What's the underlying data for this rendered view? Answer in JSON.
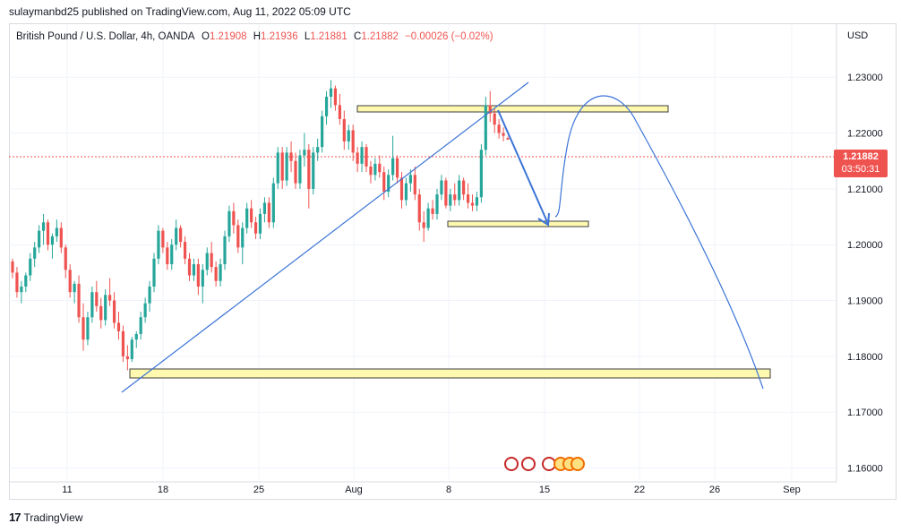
{
  "header": {
    "published": "sulaymanbd25 published on TradingView.com, Aug 11, 2022 05:09 UTC"
  },
  "legend": {
    "symbol": "British Pound / U.S. Dollar, 4h, OANDA",
    "o_label": "O",
    "o": "1.21908",
    "h_label": "H",
    "h": "1.21936",
    "l_label": "L",
    "l": "1.21881",
    "c_label": "C",
    "c": "1.21882",
    "change": "−0.00026 (−0.02%)"
  },
  "currency": "USD",
  "last_price": {
    "price": "1.21882",
    "countdown": "03:50:31",
    "color": "#ef5350"
  },
  "footer": {
    "brand": "TradingView",
    "logo_icon": "tradingview-logo-icon"
  },
  "colors": {
    "up": "#26a69a",
    "down": "#ef5350",
    "drawing": "#3b74d6",
    "zone_fill": "#fff9b0",
    "zone_border": "#3e3e3e"
  },
  "chart_data": {
    "type": "candlestick",
    "x_tick_labels": [
      "11",
      "18",
      "25",
      "Aug",
      "8",
      "15",
      "22",
      "26",
      "Sep"
    ],
    "y_tick_labels": [
      "1.23000",
      "1.22000",
      "1.21000",
      "1.20000",
      "1.19000",
      "1.18000",
      "1.17000",
      "1.16000"
    ],
    "ylim": [
      1.158,
      1.2395
    ],
    "grid": true,
    "price_line": 1.21882,
    "candles": [
      [
        1.197,
        1.1975,
        1.194,
        1.195
      ],
      [
        1.195,
        1.196,
        1.1905,
        1.1915
      ],
      [
        1.1915,
        1.1935,
        1.1895,
        1.1925
      ],
      [
        1.1925,
        1.195,
        1.1915,
        1.1945
      ],
      [
        1.1945,
        1.1985,
        1.1935,
        1.1975
      ],
      [
        1.1975,
        1.2005,
        1.196,
        1.1995
      ],
      [
        1.1995,
        1.2035,
        1.1985,
        1.2025
      ],
      [
        1.2025,
        1.2055,
        1.2,
        1.204
      ],
      [
        1.204,
        1.2045,
        1.199,
        1.2
      ],
      [
        1.2,
        1.202,
        1.1975,
        1.2015
      ],
      [
        1.2015,
        1.2045,
        1.2005,
        1.203
      ],
      [
        1.203,
        1.204,
        1.1985,
        1.1995
      ],
      [
        1.1995,
        1.2,
        1.194,
        1.1955
      ],
      [
        1.1955,
        1.1965,
        1.1905,
        1.1915
      ],
      [
        1.1915,
        1.1935,
        1.1895,
        1.193
      ],
      [
        1.193,
        1.1945,
        1.186,
        1.187
      ],
      [
        1.187,
        1.1895,
        1.181,
        1.183
      ],
      [
        1.183,
        1.188,
        1.182,
        1.187
      ],
      [
        1.187,
        1.1925,
        1.186,
        1.1915
      ],
      [
        1.1915,
        1.1935,
        1.188,
        1.189
      ],
      [
        1.189,
        1.1905,
        1.185,
        1.1865
      ],
      [
        1.1865,
        1.192,
        1.1855,
        1.191
      ],
      [
        1.191,
        1.194,
        1.189,
        1.19
      ],
      [
        1.19,
        1.1915,
        1.185,
        1.186
      ],
      [
        1.186,
        1.188,
        1.183,
        1.1845
      ],
      [
        1.1845,
        1.1855,
        1.179,
        1.18
      ],
      [
        1.18,
        1.182,
        1.1775,
        1.1795
      ],
      [
        1.1795,
        1.1835,
        1.179,
        1.183
      ],
      [
        1.183,
        1.1845,
        1.1815,
        1.184
      ],
      [
        1.184,
        1.188,
        1.183,
        1.187
      ],
      [
        1.187,
        1.1905,
        1.186,
        1.1895
      ],
      [
        1.1895,
        1.1935,
        1.188,
        1.1925
      ],
      [
        1.1925,
        1.1985,
        1.1915,
        1.1975
      ],
      [
        1.1975,
        1.2035,
        1.1965,
        1.2025
      ],
      [
        1.2025,
        1.203,
        1.1985,
        1.1995
      ],
      [
        1.1995,
        1.2005,
        1.1955,
        1.1965
      ],
      [
        1.1965,
        1.201,
        1.1955,
        1.2
      ],
      [
        1.2,
        1.2045,
        1.199,
        1.203
      ],
      [
        1.203,
        1.2035,
        1.1995,
        1.2005
      ],
      [
        1.2005,
        1.2015,
        1.1965,
        1.1975
      ],
      [
        1.1975,
        1.1985,
        1.1935,
        1.1945
      ],
      [
        1.1945,
        1.1975,
        1.1935,
        1.1965
      ],
      [
        1.1965,
        1.1975,
        1.191,
        1.1925
      ],
      [
        1.1925,
        1.1965,
        1.1895,
        1.1955
      ],
      [
        1.1955,
        1.1995,
        1.1945,
        1.1985
      ],
      [
        1.1985,
        1.2005,
        1.195,
        1.196
      ],
      [
        1.196,
        1.197,
        1.1925,
        1.1935
      ],
      [
        1.1935,
        1.1975,
        1.1925,
        1.1965
      ],
      [
        1.1965,
        1.2025,
        1.1955,
        1.2015
      ],
      [
        1.2015,
        1.207,
        1.2005,
        1.206
      ],
      [
        1.206,
        1.2075,
        1.202,
        1.2035
      ],
      [
        1.2035,
        1.2045,
        1.1985,
        1.1995
      ],
      [
        1.1995,
        1.204,
        1.1965,
        1.203
      ],
      [
        1.203,
        1.2075,
        1.202,
        1.2065
      ],
      [
        1.2065,
        1.208,
        1.203,
        1.204
      ],
      [
        1.204,
        1.205,
        1.201,
        1.202
      ],
      [
        1.202,
        1.2065,
        1.201,
        1.2055
      ],
      [
        1.2055,
        1.2085,
        1.204,
        1.2075
      ],
      [
        1.2075,
        1.2085,
        1.203,
        1.204
      ],
      [
        1.204,
        1.212,
        1.203,
        1.211
      ],
      [
        1.211,
        1.2175,
        1.21,
        1.2165
      ],
      [
        1.2165,
        1.2175,
        1.21,
        1.2115
      ],
      [
        1.2115,
        1.2175,
        1.2105,
        1.2165
      ],
      [
        1.2165,
        1.2185,
        1.213,
        1.215
      ],
      [
        1.215,
        1.2165,
        1.21,
        1.211
      ],
      [
        1.211,
        1.217,
        1.21,
        1.216
      ],
      [
        1.216,
        1.22,
        1.214,
        1.217
      ],
      [
        1.217,
        1.218,
        1.2065,
        1.21
      ],
      [
        1.21,
        1.2175,
        1.209,
        1.2165
      ],
      [
        1.2165,
        1.219,
        1.215,
        1.2175
      ],
      [
        1.2175,
        1.224,
        1.2165,
        1.223
      ],
      [
        1.223,
        1.2275,
        1.2215,
        1.2265
      ],
      [
        1.2265,
        1.2295,
        1.2245,
        1.228
      ],
      [
        1.228,
        1.2285,
        1.224,
        1.225
      ],
      [
        1.225,
        1.227,
        1.2215,
        1.2225
      ],
      [
        1.2225,
        1.224,
        1.217,
        1.2185
      ],
      [
        1.2185,
        1.2215,
        1.217,
        1.2205
      ],
      [
        1.2205,
        1.2215,
        1.215,
        1.2165
      ],
      [
        1.2165,
        1.2175,
        1.213,
        1.2145
      ],
      [
        1.2145,
        1.2185,
        1.213,
        1.2175
      ],
      [
        1.2175,
        1.218,
        1.213,
        1.214
      ],
      [
        1.214,
        1.215,
        1.211,
        1.2125
      ],
      [
        1.2125,
        1.2155,
        1.2115,
        1.2145
      ],
      [
        1.2145,
        1.216,
        1.212,
        1.213
      ],
      [
        1.213,
        1.214,
        1.208,
        1.2095
      ],
      [
        1.2095,
        1.2135,
        1.2085,
        1.2125
      ],
      [
        1.2125,
        1.2195,
        1.2115,
        1.2155
      ],
      [
        1.2155,
        1.216,
        1.211,
        1.212
      ],
      [
        1.212,
        1.213,
        1.2065,
        1.208
      ],
      [
        1.208,
        1.212,
        1.207,
        1.211
      ],
      [
        1.211,
        1.2135,
        1.2095,
        1.2125
      ],
      [
        1.2125,
        1.214,
        1.208,
        1.209
      ],
      [
        1.209,
        1.21,
        1.2025,
        1.204
      ],
      [
        1.204,
        1.206,
        1.2005,
        1.203
      ],
      [
        1.203,
        1.2075,
        1.2025,
        1.2065
      ],
      [
        1.2065,
        1.208,
        1.2045,
        1.2055
      ],
      [
        1.2055,
        1.21,
        1.2045,
        1.209
      ],
      [
        1.209,
        1.2125,
        1.208,
        1.2115
      ],
      [
        1.2115,
        1.212,
        1.2065,
        1.207
      ],
      [
        1.207,
        1.21,
        1.206,
        1.209
      ],
      [
        1.209,
        1.211,
        1.207,
        1.208
      ],
      [
        1.208,
        1.2125,
        1.207,
        1.2115
      ],
      [
        1.2115,
        1.212,
        1.208,
        1.209
      ],
      [
        1.209,
        1.211,
        1.2065,
        1.2075
      ],
      [
        1.2075,
        1.209,
        1.206,
        1.207
      ],
      [
        1.207,
        1.2095,
        1.206,
        1.2085
      ],
      [
        1.2085,
        1.218,
        1.2075,
        1.217
      ],
      [
        1.217,
        1.2265,
        1.216,
        1.225
      ],
      [
        1.225,
        1.2275,
        1.222,
        1.2235
      ],
      [
        1.2235,
        1.2245,
        1.22,
        1.2215
      ],
      [
        1.2215,
        1.2225,
        1.219,
        1.22
      ],
      [
        1.22,
        1.221,
        1.2185,
        1.2195
      ],
      [
        1.21908,
        1.21936,
        1.21881,
        1.21882
      ]
    ]
  }
}
